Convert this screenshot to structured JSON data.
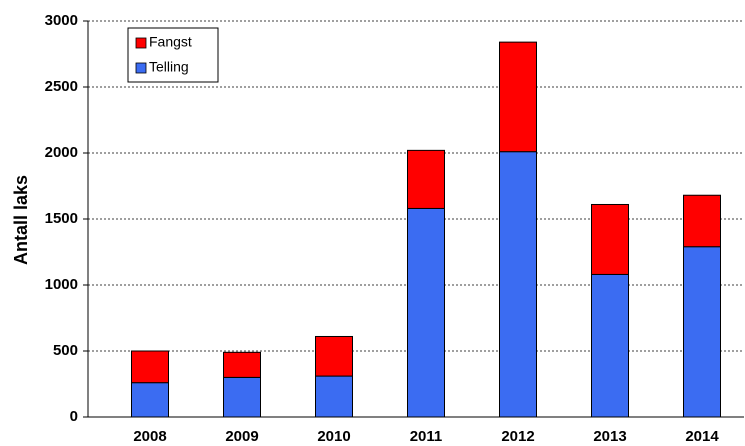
{
  "chart_data": {
    "type": "stacked_bar",
    "y_label": "Antall laks",
    "categories": [
      "2008",
      "2009",
      "2010",
      "2011",
      "2012",
      "2013",
      "2014"
    ],
    "series": [
      {
        "name": "Telling",
        "color": "#3b6cf2",
        "values": [
          260,
          300,
          310,
          1580,
          2010,
          1080,
          1290
        ]
      },
      {
        "name": "Fangst",
        "color": "#ff0000",
        "values": [
          240,
          190,
          300,
          440,
          830,
          530,
          390
        ]
      }
    ],
    "ylim": [
      0,
      3000
    ],
    "yticks": [
      0,
      500,
      1000,
      1500,
      2000,
      2500,
      3000
    ],
    "grid": true
  }
}
